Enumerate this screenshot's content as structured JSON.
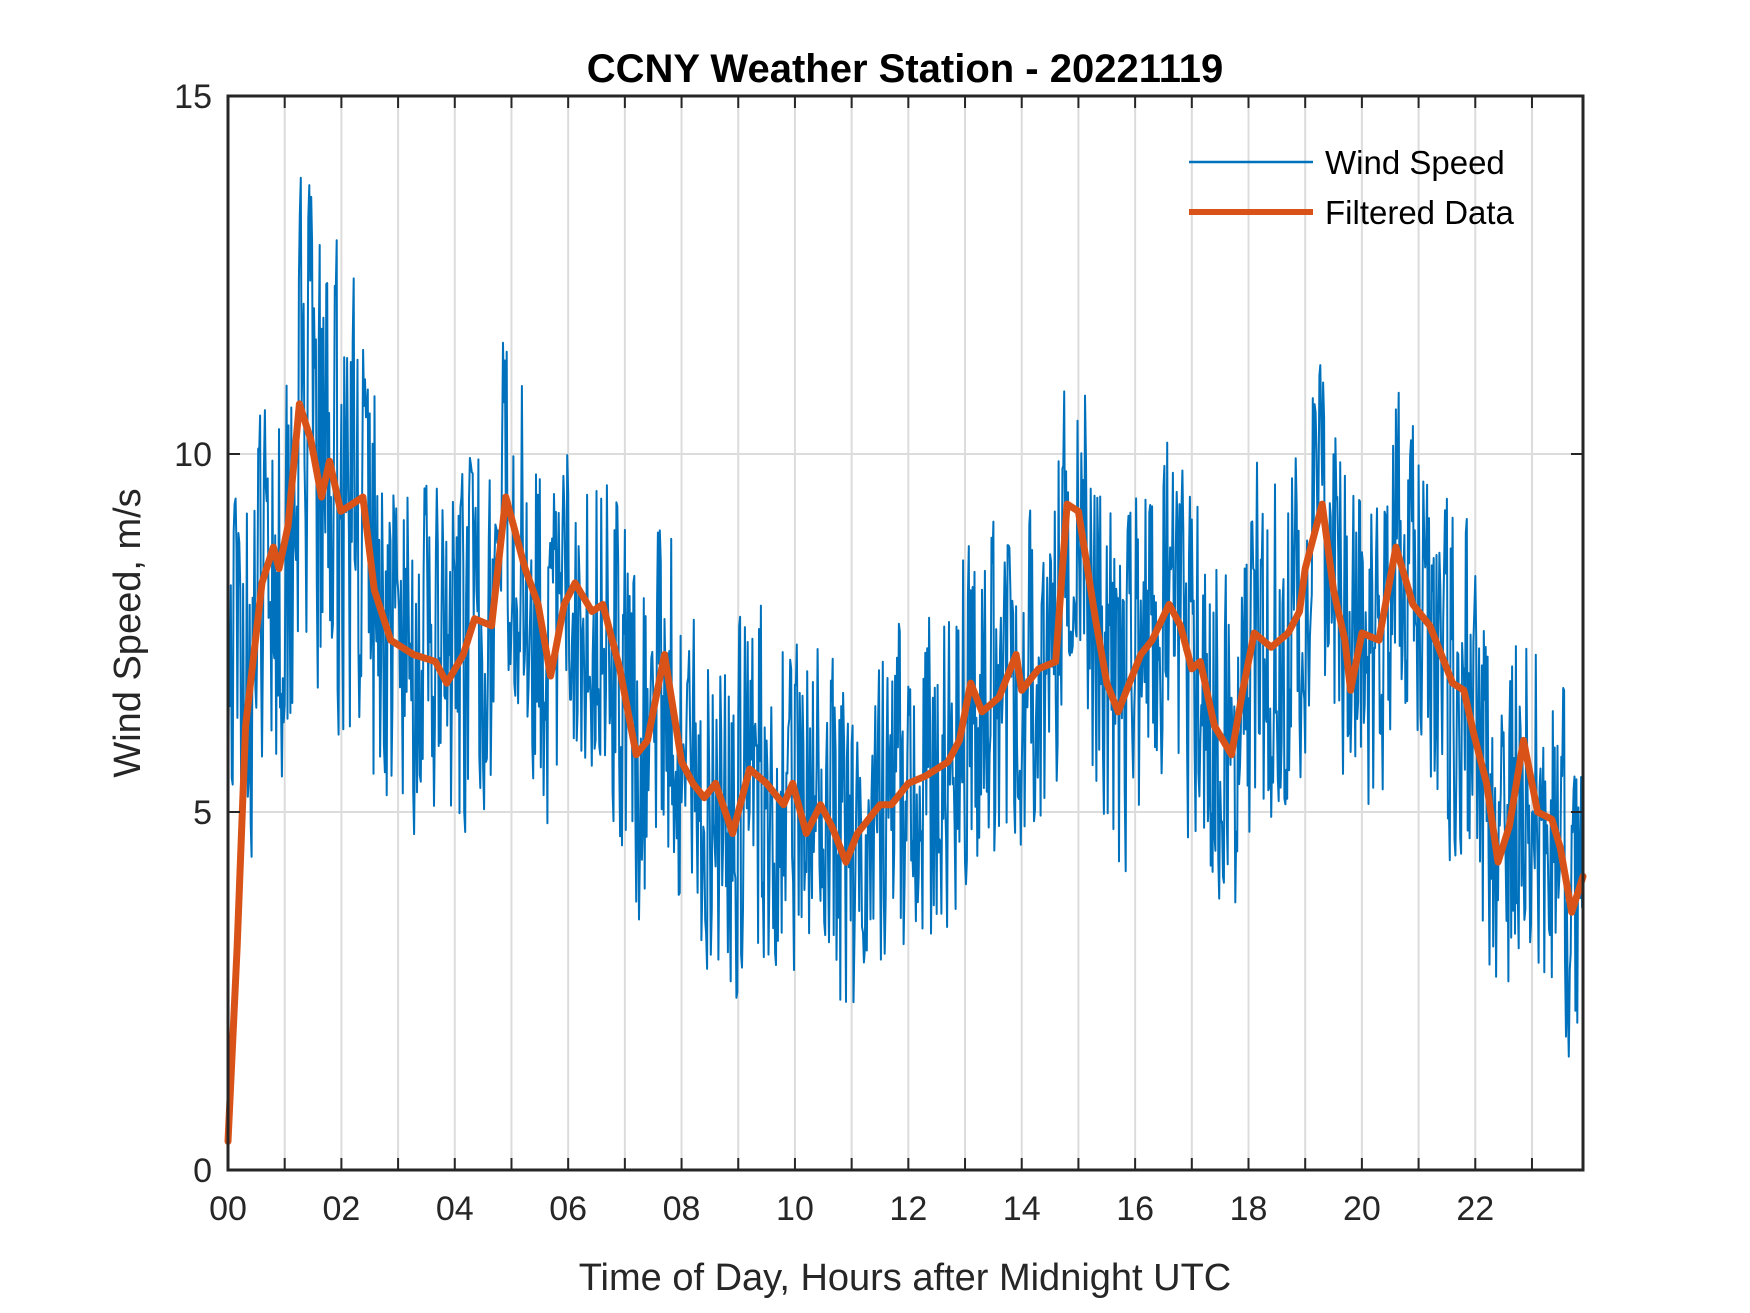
{
  "chart_data": {
    "type": "line",
    "title": "CCNY Weather Station - 20221119",
    "xlabel": "Time of Day, Hours after Midnight UTC",
    "ylabel": "Wind Speed, m/s",
    "xlim": [
      0,
      23.9
    ],
    "ylim": [
      0,
      15
    ],
    "x_ticks": [
      0,
      2,
      4,
      6,
      8,
      10,
      12,
      14,
      16,
      18,
      20,
      22
    ],
    "x_tick_labels": [
      "00",
      "02",
      "04",
      "06",
      "08",
      "10",
      "12",
      "14",
      "16",
      "18",
      "20",
      "22"
    ],
    "x_minor_grid_every": 1,
    "y_ticks": [
      0,
      5,
      10,
      15
    ],
    "y_tick_labels": [
      "0",
      "5",
      "10",
      "15"
    ],
    "grid": true,
    "legend_position": "top-right",
    "series": [
      {
        "name": "Wind Speed",
        "color": "#0072BD",
        "description": "Raw 1-minute wind speed; high-frequency scatter of roughly ±2 m/s around the filtered trend, peaking near 14.0 m/s around 01:15 and dipping near 1.2 m/s around 23:40",
        "approximation": {
          "noise_amplitude": 2.2,
          "samples_per_hour": 60,
          "seed": 19
        }
      },
      {
        "name": "Filtered Data",
        "color": "#D95319",
        "x": [
          0,
          0.16,
          0.31,
          0.6,
          0.8,
          0.9,
          1.06,
          1.26,
          1.46,
          1.65,
          1.79,
          1.99,
          2.19,
          2.38,
          2.58,
          2.87,
          3.27,
          3.66,
          3.86,
          4.15,
          4.35,
          4.65,
          4.9,
          5.24,
          5.47,
          5.69,
          5.93,
          6.12,
          6.42,
          6.61,
          6.91,
          7.2,
          7.4,
          7.7,
          8.0,
          8.2,
          8.4,
          8.6,
          8.9,
          9.2,
          9.5,
          9.8,
          9.96,
          10.2,
          10.45,
          10.65,
          10.9,
          11.1,
          11.5,
          11.7,
          12.0,
          12.3,
          12.7,
          12.9,
          13.1,
          13.3,
          13.6,
          13.9,
          14.0,
          14.3,
          14.6,
          14.8,
          15.0,
          15.3,
          15.5,
          15.7,
          15.9,
          16.1,
          16.3,
          16.6,
          16.8,
          17.0,
          17.15,
          17.4,
          17.7,
          17.9,
          18.1,
          18.4,
          18.7,
          18.9,
          19.0,
          19.3,
          19.5,
          19.7,
          19.8,
          20.0,
          20.3,
          20.6,
          20.9,
          21.2,
          21.4,
          21.6,
          21.8,
          21.97,
          22.2,
          22.4,
          22.6,
          22.85,
          23.1,
          23.35,
          23.5,
          23.7,
          23.9
        ],
        "values": [
          0.4,
          3.1,
          6.2,
          8.2,
          8.7,
          8.4,
          9.0,
          10.7,
          10.2,
          9.4,
          9.9,
          9.2,
          9.3,
          9.4,
          8.1,
          7.4,
          7.2,
          7.1,
          6.8,
          7.2,
          7.7,
          7.6,
          9.4,
          8.4,
          7.9,
          6.9,
          7.9,
          8.2,
          7.8,
          7.9,
          7.0,
          5.8,
          6.0,
          7.2,
          5.7,
          5.4,
          5.2,
          5.4,
          4.7,
          5.6,
          5.4,
          5.1,
          5.4,
          4.7,
          5.1,
          4.8,
          4.3,
          4.7,
          5.1,
          5.1,
          5.4,
          5.5,
          5.7,
          6.0,
          6.8,
          6.4,
          6.6,
          7.2,
          6.7,
          7.0,
          7.1,
          9.3,
          9.2,
          7.7,
          6.8,
          6.4,
          6.8,
          7.2,
          7.4,
          7.9,
          7.6,
          7.0,
          7.1,
          6.2,
          5.8,
          6.7,
          7.5,
          7.3,
          7.5,
          7.8,
          8.4,
          9.3,
          8.1,
          7.4,
          6.7,
          7.5,
          7.4,
          8.7,
          7.9,
          7.6,
          7.2,
          6.8,
          6.7,
          6.1,
          5.4,
          4.3,
          4.8,
          6.0,
          5.0,
          4.9,
          4.5,
          3.6,
          4.1
        ]
      }
    ]
  }
}
